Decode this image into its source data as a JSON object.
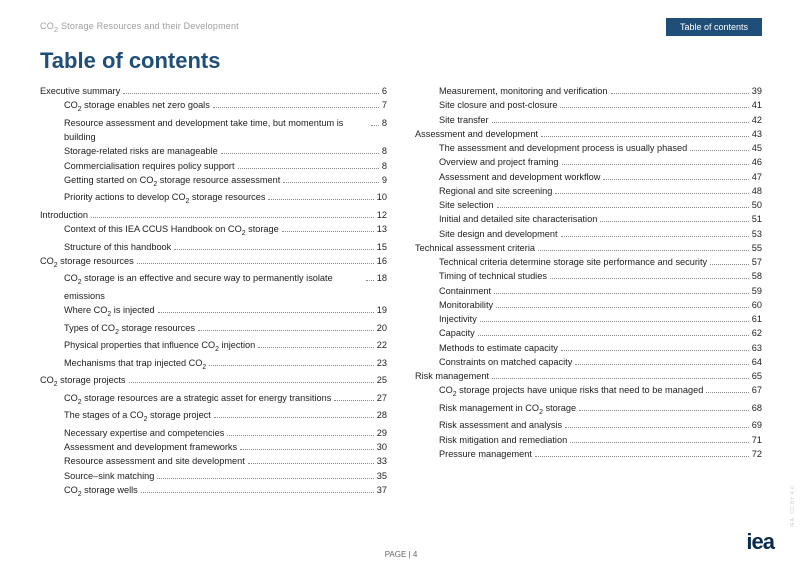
{
  "doc_title_html": "CO<sub>2</sub> Storage Resources and their Development",
  "toc_tag": "Table of contents",
  "heading": "Table of contents",
  "footer_page": "PAGE | 4",
  "sidenote": "IEA. CC BY 4.0.",
  "logo": "iea",
  "colors": {
    "heading": "#1f4e79",
    "tag_bg": "#1f4e79"
  },
  "left": [
    {
      "level": 0,
      "text": "Executive summary",
      "page": "6"
    },
    {
      "level": 1,
      "html": "CO<sub>2</sub> storage enables net zero goals",
      "page": "7"
    },
    {
      "level": 1,
      "text": "Resource assessment and development take time, but momentum is building",
      "page": "8"
    },
    {
      "level": 1,
      "text": "Storage-related risks are manageable",
      "page": "8"
    },
    {
      "level": 1,
      "text": "Commercialisation requires policy support",
      "page": "8"
    },
    {
      "level": 1,
      "html": "Getting started on CO<sub>2</sub> storage resource assessment",
      "page": "9"
    },
    {
      "level": 1,
      "html": "Priority actions to develop CO<sub>2</sub> storage resources",
      "page": "10"
    },
    {
      "level": 0,
      "text": "Introduction",
      "page": "12"
    },
    {
      "level": 1,
      "html": "Context of this IEA CCUS Handbook on CO<sub>2</sub> storage",
      "page": "13"
    },
    {
      "level": 1,
      "text": "Structure of this handbook",
      "page": "15"
    },
    {
      "level": 0,
      "html": "CO<sub>2</sub> storage resources",
      "page": "16"
    },
    {
      "level": 1,
      "html": "CO<sub>2</sub> storage is an effective and secure way to permanently isolate emissions",
      "page": "18"
    },
    {
      "level": 1,
      "html": "Where CO<sub>2</sub> is injected",
      "page": "19"
    },
    {
      "level": 1,
      "html": "Types of CO<sub>2</sub> storage resources",
      "page": "20"
    },
    {
      "level": 1,
      "html": "Physical properties that influence CO<sub>2</sub> injection",
      "page": "22"
    },
    {
      "level": 1,
      "html": "Mechanisms that trap injected CO<sub>2</sub>",
      "page": "23"
    },
    {
      "level": 0,
      "html": "CO<sub>2</sub> storage projects",
      "page": "25"
    },
    {
      "level": 1,
      "html": "CO<sub>2</sub> storage resources are a strategic asset for energy transitions",
      "page": "27"
    },
    {
      "level": 1,
      "html": "The stages of a CO<sub>2</sub> storage project",
      "page": "28"
    },
    {
      "level": 1,
      "text": "Necessary expertise and competencies",
      "page": "29"
    },
    {
      "level": 1,
      "text": "Assessment and development frameworks",
      "page": "30"
    },
    {
      "level": 1,
      "text": "Resource assessment and site development",
      "page": "33"
    },
    {
      "level": 1,
      "text": "Source–sink matching",
      "page": "35"
    },
    {
      "level": 1,
      "html": "CO<sub>2</sub> storage wells",
      "page": "37"
    }
  ],
  "right": [
    {
      "level": 1,
      "text": "Measurement, monitoring and verification",
      "page": "39"
    },
    {
      "level": 1,
      "text": "Site closure and post-closure",
      "page": "41"
    },
    {
      "level": 1,
      "text": "Site transfer",
      "page": "42"
    },
    {
      "level": 0,
      "text": "Assessment and development",
      "page": "43"
    },
    {
      "level": 1,
      "text": "The assessment and development process is usually phased",
      "page": "45"
    },
    {
      "level": 1,
      "text": "Overview and project framing",
      "page": "46"
    },
    {
      "level": 1,
      "text": "Assessment and development workflow",
      "page": "47"
    },
    {
      "level": 1,
      "text": "Regional and site screening",
      "page": "48"
    },
    {
      "level": 1,
      "text": "Site selection",
      "page": "50"
    },
    {
      "level": 1,
      "text": "Initial and detailed site characterisation",
      "page": "51"
    },
    {
      "level": 1,
      "text": "Site design and development",
      "page": "53"
    },
    {
      "level": 0,
      "text": "Technical assessment criteria",
      "page": "55"
    },
    {
      "level": 1,
      "text": "Technical criteria determine storage site performance and security",
      "page": "57"
    },
    {
      "level": 1,
      "text": "Timing of technical studies",
      "page": "58"
    },
    {
      "level": 1,
      "text": "Containment",
      "page": "59"
    },
    {
      "level": 1,
      "text": "Monitorability",
      "page": "60"
    },
    {
      "level": 1,
      "text": "Injectivity",
      "page": "61"
    },
    {
      "level": 1,
      "text": "Capacity",
      "page": "62"
    },
    {
      "level": 1,
      "text": "Methods to estimate capacity",
      "page": "63"
    },
    {
      "level": 1,
      "text": "Constraints on matched capacity",
      "page": "64"
    },
    {
      "level": 0,
      "text": "Risk management",
      "page": "65"
    },
    {
      "level": 1,
      "html": "CO<sub>2</sub> storage projects have unique risks that need to be managed",
      "page": "67"
    },
    {
      "level": 1,
      "html": "Risk management in CO<sub>2</sub> storage",
      "page": "68"
    },
    {
      "level": 1,
      "text": "Risk assessment and analysis",
      "page": "69"
    },
    {
      "level": 1,
      "text": "Risk mitigation and remediation",
      "page": "71"
    },
    {
      "level": 1,
      "text": "Pressure management",
      "page": "72"
    }
  ]
}
